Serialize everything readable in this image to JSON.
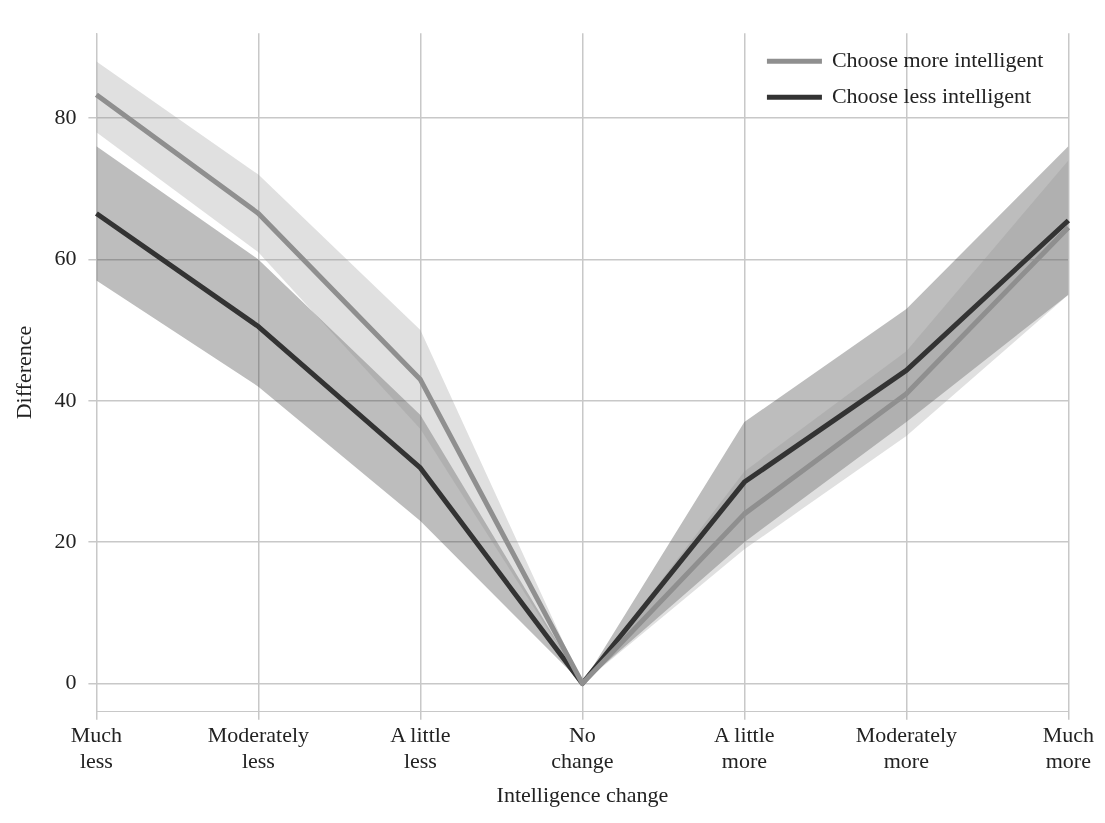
{
  "chart_data": {
    "type": "line",
    "xlabel": "Intelligence change",
    "ylabel": "Difference",
    "categories": [
      "Much\nless",
      "Moderately\nless",
      "A little\nless",
      "No\nchange",
      "A little\nmore",
      "Moderately\nmore",
      "Much\nmore"
    ],
    "series": [
      {
        "name": "Choose more intelligent",
        "color": "#8f8f8f",
        "values": [
          83.3,
          66.5,
          43,
          0,
          24,
          41,
          64.5
        ],
        "lower": [
          78,
          61,
          36,
          0,
          19,
          35,
          55
        ],
        "upper": [
          88,
          72,
          50,
          0,
          30,
          47,
          74
        ]
      },
      {
        "name": "Choose less intelligent",
        "color": "#333333",
        "values": [
          66.5,
          50.5,
          30.5,
          0,
          28.5,
          44.3,
          65.5
        ],
        "lower": [
          57,
          42,
          23,
          0,
          20,
          37,
          55
        ],
        "upper": [
          76,
          60,
          38,
          0,
          37,
          53,
          76
        ]
      }
    ],
    "ylim": [
      -4,
      92
    ],
    "yticks": [
      0,
      20,
      40,
      60,
      80
    ],
    "grid": true,
    "legend": "top right",
    "marker": "none",
    "line_style": "solid"
  }
}
